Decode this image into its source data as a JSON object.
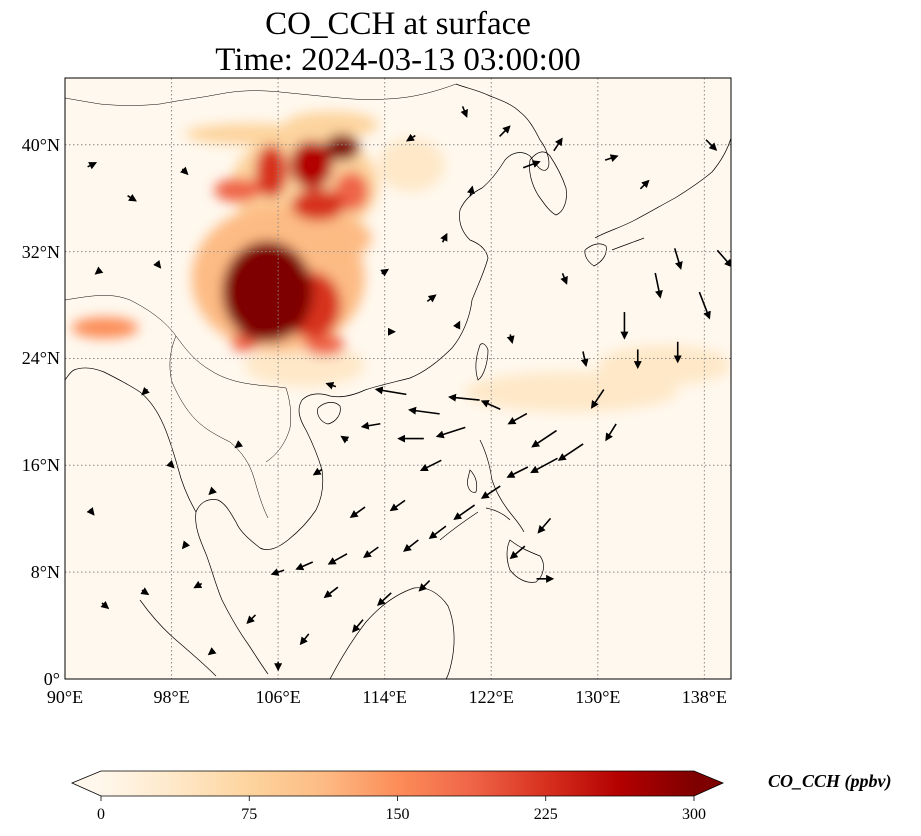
{
  "title_line1": "CO_CCH at surface",
  "title_line2": "Time: 2024-03-13 03:00:00",
  "map": {
    "lon_range": [
      90,
      140
    ],
    "lat_range": [
      0,
      45
    ],
    "lon_ticks": [
      {
        "value": 90,
        "label": "90°E"
      },
      {
        "value": 98,
        "label": "98°E"
      },
      {
        "value": 106,
        "label": "106°E"
      },
      {
        "value": 114,
        "label": "114°E"
      },
      {
        "value": 122,
        "label": "122°E"
      },
      {
        "value": 130,
        "label": "130°E"
      },
      {
        "value": 138,
        "label": "138°E"
      }
    ],
    "lat_ticks": [
      {
        "value": 0,
        "label": "0°"
      },
      {
        "value": 8,
        "label": "8°N"
      },
      {
        "value": 16,
        "label": "16°N"
      },
      {
        "value": 24,
        "label": "24°N"
      },
      {
        "value": 32,
        "label": "32°N"
      },
      {
        "value": 40,
        "label": "40°N"
      }
    ],
    "gridlines": "dotted",
    "background_color": "#fff8ee",
    "coastline_color": "#000000",
    "concentration_blobs": [
      {
        "lon": 105.2,
        "lat": 29.0,
        "rlon": 3.4,
        "rlat": 3.8,
        "value": 300
      },
      {
        "lon": 108.5,
        "lat": 28.0,
        "rlon": 2.2,
        "rlat": 2.5,
        "value": 230
      },
      {
        "lon": 106.0,
        "lat": 30.0,
        "rlon": 6.5,
        "rlat": 5.5,
        "value": 120
      },
      {
        "lon": 108.5,
        "lat": 38.5,
        "rlon": 1.6,
        "rlat": 1.8,
        "value": 260
      },
      {
        "lon": 110.8,
        "lat": 39.8,
        "rlon": 1.3,
        "rlat": 1.0,
        "value": 300
      },
      {
        "lon": 105.5,
        "lat": 38.0,
        "rlon": 1.2,
        "rlat": 2.0,
        "value": 230
      },
      {
        "lon": 111.5,
        "lat": 36.5,
        "rlon": 1.3,
        "rlat": 1.5,
        "value": 200
      },
      {
        "lon": 109.0,
        "lat": 35.5,
        "rlon": 2.0,
        "rlat": 1.2,
        "value": 210
      },
      {
        "lon": 103.0,
        "lat": 36.6,
        "rlon": 1.8,
        "rlat": 0.9,
        "value": 170
      },
      {
        "lon": 108.0,
        "lat": 37.0,
        "rlon": 5.5,
        "rlat": 4.0,
        "value": 90
      },
      {
        "lon": 108.5,
        "lat": 33.0,
        "rlon": 4.5,
        "rlat": 2.0,
        "value": 110
      },
      {
        "lon": 109.5,
        "lat": 25.0,
        "rlon": 1.5,
        "rlat": 0.8,
        "value": 200
      },
      {
        "lon": 103.5,
        "lat": 25.2,
        "rlon": 1.0,
        "rlat": 0.7,
        "value": 170
      },
      {
        "lon": 93.0,
        "lat": 26.3,
        "rlon": 2.5,
        "rlat": 0.8,
        "value": 150
      },
      {
        "lon": 104.0,
        "lat": 40.8,
        "rlon": 5.0,
        "rlat": 0.8,
        "value": 70
      },
      {
        "lon": 110.0,
        "lat": 41.5,
        "rlon": 3.5,
        "rlat": 1.0,
        "value": 80
      },
      {
        "lon": 108.0,
        "lat": 23.5,
        "rlon": 4.5,
        "rlat": 1.6,
        "value": 50
      },
      {
        "lon": 128.0,
        "lat": 21.5,
        "rlon": 8.0,
        "rlat": 1.5,
        "value": 22
      },
      {
        "lon": 135.0,
        "lat": 23.5,
        "rlon": 5.0,
        "rlat": 1.5,
        "value": 25
      },
      {
        "lon": 116.0,
        "lat": 38.5,
        "rlon": 2.5,
        "rlat": 2.0,
        "value": 30
      }
    ],
    "wind_vectors": [
      {
        "lon": 120.0,
        "lat": 21.0,
        "u": -3.0,
        "v": 0.3
      },
      {
        "lon": 117.0,
        "lat": 20.0,
        "u": -3.0,
        "v": 0.4
      },
      {
        "lon": 114.5,
        "lat": 21.5,
        "u": -3.0,
        "v": 0.5
      },
      {
        "lon": 119.0,
        "lat": 18.5,
        "u": -2.8,
        "v": -0.9
      },
      {
        "lon": 116.0,
        "lat": 18.0,
        "u": -2.5,
        "v": 0.0
      },
      {
        "lon": 113.0,
        "lat": 19.0,
        "u": -1.8,
        "v": -0.3
      },
      {
        "lon": 117.5,
        "lat": 16.0,
        "u": -2.0,
        "v": -1.0
      },
      {
        "lon": 122.0,
        "lat": 20.5,
        "u": -1.8,
        "v": 0.8
      },
      {
        "lon": 124.0,
        "lat": 19.5,
        "u": -1.8,
        "v": -1.0
      },
      {
        "lon": 126.0,
        "lat": 18.0,
        "u": -2.4,
        "v": -1.6
      },
      {
        "lon": 128.0,
        "lat": 17.0,
        "u": -2.4,
        "v": -1.6
      },
      {
        "lon": 126.0,
        "lat": 16.0,
        "u": -2.6,
        "v": -1.4
      },
      {
        "lon": 124.0,
        "lat": 15.5,
        "u": -2.0,
        "v": -1.0
      },
      {
        "lon": 122.0,
        "lat": 14.0,
        "u": -1.8,
        "v": -1.2
      },
      {
        "lon": 120.0,
        "lat": 12.5,
        "u": -2.0,
        "v": -1.4
      },
      {
        "lon": 118.0,
        "lat": 11.0,
        "u": -1.6,
        "v": -1.2
      },
      {
        "lon": 116.0,
        "lat": 10.0,
        "u": -1.4,
        "v": -1.1
      },
      {
        "lon": 113.0,
        "lat": 9.5,
        "u": -1.4,
        "v": -1.0
      },
      {
        "lon": 110.5,
        "lat": 9.0,
        "u": -1.8,
        "v": -1.0
      },
      {
        "lon": 108.0,
        "lat": 8.5,
        "u": -1.6,
        "v": -0.7
      },
      {
        "lon": 106.0,
        "lat": 8.0,
        "u": -1.2,
        "v": -0.4
      },
      {
        "lon": 112.0,
        "lat": 12.5,
        "u": -1.4,
        "v": -1.0
      },
      {
        "lon": 115.0,
        "lat": 13.0,
        "u": -1.4,
        "v": -1.0
      },
      {
        "lon": 110.0,
        "lat": 6.5,
        "u": -1.3,
        "v": -1.0
      },
      {
        "lon": 114.0,
        "lat": 6.0,
        "u": -1.3,
        "v": -1.2
      },
      {
        "lon": 117.0,
        "lat": 7.0,
        "u": -1.0,
        "v": -1.0
      },
      {
        "lon": 112.0,
        "lat": 4.0,
        "u": -1.0,
        "v": -1.2
      },
      {
        "lon": 108.0,
        "lat": 3.0,
        "u": -0.8,
        "v": -1.0
      },
      {
        "lon": 104.0,
        "lat": 4.5,
        "u": -0.8,
        "v": -0.8
      },
      {
        "lon": 100.0,
        "lat": 7.0,
        "u": -0.7,
        "v": -0.4
      },
      {
        "lon": 96.0,
        "lat": 6.5,
        "u": 0.6,
        "v": -0.4
      },
      {
        "lon": 93.0,
        "lat": 5.5,
        "u": 0.6,
        "v": -0.5
      },
      {
        "lon": 126.0,
        "lat": 11.5,
        "u": -1.2,
        "v": -1.4
      },
      {
        "lon": 124.0,
        "lat": 9.5,
        "u": -1.4,
        "v": -1.2
      },
      {
        "lon": 126.0,
        "lat": 7.5,
        "u": 1.6,
        "v": 0.0
      },
      {
        "lon": 130.0,
        "lat": 21.0,
        "u": -1.2,
        "v": -1.8
      },
      {
        "lon": 131.0,
        "lat": 18.5,
        "u": -1.0,
        "v": -1.6
      },
      {
        "lon": 132.0,
        "lat": 26.5,
        "u": 0.0,
        "v": -2.6
      },
      {
        "lon": 134.5,
        "lat": 29.5,
        "u": 0.5,
        "v": -2.4
      },
      {
        "lon": 136.0,
        "lat": 31.5,
        "u": 0.6,
        "v": -2.0
      },
      {
        "lon": 138.0,
        "lat": 28.0,
        "u": 1.0,
        "v": -2.6
      },
      {
        "lon": 139.5,
        "lat": 31.5,
        "u": 1.4,
        "v": -1.6
      },
      {
        "lon": 136.0,
        "lat": 24.5,
        "u": 0.0,
        "v": -2.0
      },
      {
        "lon": 133.0,
        "lat": 24.0,
        "u": 0.0,
        "v": -1.8
      },
      {
        "lon": 129.0,
        "lat": 24.0,
        "u": 0.3,
        "v": -1.4
      },
      {
        "lon": 127.5,
        "lat": 30.0,
        "u": 0.4,
        "v": -1.0
      },
      {
        "lon": 123.5,
        "lat": 25.5,
        "u": 0.2,
        "v": -0.8
      },
      {
        "lon": 131.0,
        "lat": 39.0,
        "u": 1.2,
        "v": 0.4
      },
      {
        "lon": 127.0,
        "lat": 40.0,
        "u": 0.8,
        "v": 1.2
      },
      {
        "lon": 125.0,
        "lat": 38.5,
        "u": 1.6,
        "v": 0.6
      },
      {
        "lon": 133.5,
        "lat": 37.0,
        "u": 0.8,
        "v": 0.8
      },
      {
        "lon": 138.5,
        "lat": 40.0,
        "u": 1.0,
        "v": -1.0
      },
      {
        "lon": 120.0,
        "lat": 42.5,
        "u": 0.4,
        "v": -1.0
      },
      {
        "lon": 123.0,
        "lat": 41.0,
        "u": 1.0,
        "v": 1.0
      },
      {
        "lon": 116.0,
        "lat": 40.5,
        "u": -0.8,
        "v": -0.5
      },
      {
        "lon": 120.5,
        "lat": 36.5,
        "u": 0.2,
        "v": 0.9
      },
      {
        "lon": 114.0,
        "lat": 30.5,
        "u": 0.6,
        "v": 0.4
      },
      {
        "lon": 117.5,
        "lat": 28.5,
        "u": 0.8,
        "v": 0.6
      },
      {
        "lon": 114.5,
        "lat": 26.0,
        "u": 0.6,
        "v": 0.0
      },
      {
        "lon": 119.5,
        "lat": 26.5,
        "u": 0.3,
        "v": 0.6
      },
      {
        "lon": 118.5,
        "lat": 33.0,
        "u": 0.4,
        "v": 0.8
      },
      {
        "lon": 95.0,
        "lat": 36.0,
        "u": 0.8,
        "v": -0.5
      },
      {
        "lon": 92.0,
        "lat": 38.5,
        "u": 0.8,
        "v": 0.4
      },
      {
        "lon": 99.0,
        "lat": 38.0,
        "u": 0.5,
        "v": -0.5
      },
      {
        "lon": 97.0,
        "lat": 31.0,
        "u": 0.4,
        "v": -0.5
      },
      {
        "lon": 92.5,
        "lat": 30.5,
        "u": -0.5,
        "v": -0.4
      },
      {
        "lon": 96.0,
        "lat": 21.5,
        "u": -0.5,
        "v": -0.5
      },
      {
        "lon": 98.0,
        "lat": 16.0,
        "u": 0.4,
        "v": -0.4
      },
      {
        "lon": 101.0,
        "lat": 14.0,
        "u": -0.4,
        "v": -0.4
      },
      {
        "lon": 92.0,
        "lat": 12.5,
        "u": 0.4,
        "v": -0.5
      },
      {
        "lon": 99.0,
        "lat": 10.0,
        "u": -0.4,
        "v": -0.5
      },
      {
        "lon": 103.0,
        "lat": 17.5,
        "u": -0.5,
        "v": -0.4
      },
      {
        "lon": 106.0,
        "lat": 1.0,
        "u": 0.0,
        "v": -0.8
      },
      {
        "lon": 101.0,
        "lat": 2.0,
        "u": -0.5,
        "v": -0.4
      },
      {
        "lon": 109.0,
        "lat": 15.5,
        "u": -0.8,
        "v": -0.5
      },
      {
        "lon": 111.0,
        "lat": 18.0,
        "u": -0.6,
        "v": 0.4
      },
      {
        "lon": 110.0,
        "lat": 22.0,
        "u": -0.9,
        "v": 0.3
      }
    ]
  },
  "colorbar": {
    "label": "CO_CCH (ppbv)",
    "min": 0,
    "max": 300,
    "extend": "both",
    "colormap": "OrRd",
    "colors": [
      "#fff7ec",
      "#fee8c8",
      "#fdd49e",
      "#fdbb84",
      "#fc8d59",
      "#ef6548",
      "#d7301f",
      "#b30000",
      "#7f0000"
    ],
    "ticks": [
      {
        "value": 0,
        "label": "0"
      },
      {
        "value": 75,
        "label": "75"
      },
      {
        "value": 150,
        "label": "150"
      },
      {
        "value": 225,
        "label": "225"
      },
      {
        "value": 300,
        "label": "300"
      }
    ]
  }
}
